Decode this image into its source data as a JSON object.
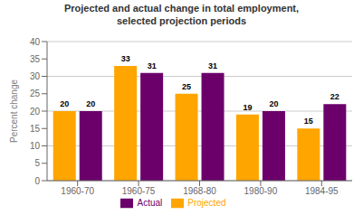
{
  "chart_data": {
    "type": "bar",
    "title": "Projected and actual change in total employment,\nselected projection periods",
    "categories": [
      "1960-70",
      "1960-75",
      "1968-80",
      "1980-90",
      "1984-95"
    ],
    "series": [
      {
        "name": "Projected",
        "color": "#FFA500",
        "values": [
          20,
          33,
          25,
          19,
          15
        ]
      },
      {
        "name": "Actual",
        "color": "#6B006B",
        "values": [
          20,
          31,
          31,
          20,
          22
        ]
      }
    ],
    "ylabel": "Percent change",
    "ylim": [
      0,
      40
    ],
    "yticks": [
      0,
      5,
      10,
      15,
      20,
      25,
      30,
      35,
      40
    ],
    "grid": true,
    "legend": "bottom",
    "data_labels": true
  }
}
